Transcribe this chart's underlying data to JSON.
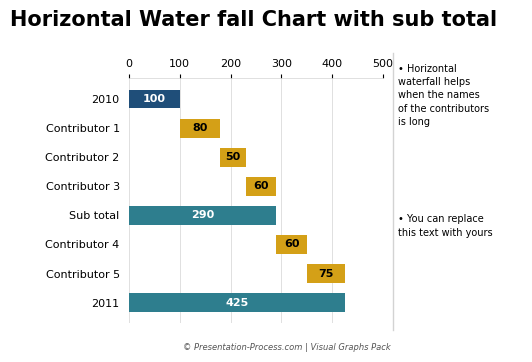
{
  "title": "Horizontal Water fall Chart with sub total",
  "categories": [
    "2010",
    "Contributor 1",
    "Contributor 2",
    "Contributor 3",
    "Sub total",
    "Contributor 4",
    "Contributor 5",
    "2011"
  ],
  "values": [
    100,
    80,
    50,
    60,
    290,
    60,
    75,
    425
  ],
  "starts": [
    0,
    100,
    180,
    230,
    0,
    290,
    350,
    0
  ],
  "colors": [
    "#1F4E79",
    "#D4A017",
    "#D4A017",
    "#D4A017",
    "#2E7E8E",
    "#D4A017",
    "#D4A017",
    "#2E7E8E"
  ],
  "bar_label_colors": [
    "#ffffff",
    "#000000",
    "#000000",
    "#000000",
    "#ffffff",
    "#000000",
    "#000000",
    "#ffffff"
  ],
  "xlim": [
    0,
    500
  ],
  "xticks": [
    0,
    100,
    200,
    300,
    400,
    500
  ],
  "title_fontsize": 15,
  "label_fontsize": 8,
  "tick_fontsize": 8,
  "bar_label_fontsize": 8,
  "background_color": "#ffffff",
  "bullet_text_1": "Horizontal\nwaterfall helps\nwhen the names\nof the contributors\nis long",
  "bullet_text_2": "You can replace\nthis text with yours",
  "footer": "© Presentation-Process.com | Visual Graphs Pack"
}
